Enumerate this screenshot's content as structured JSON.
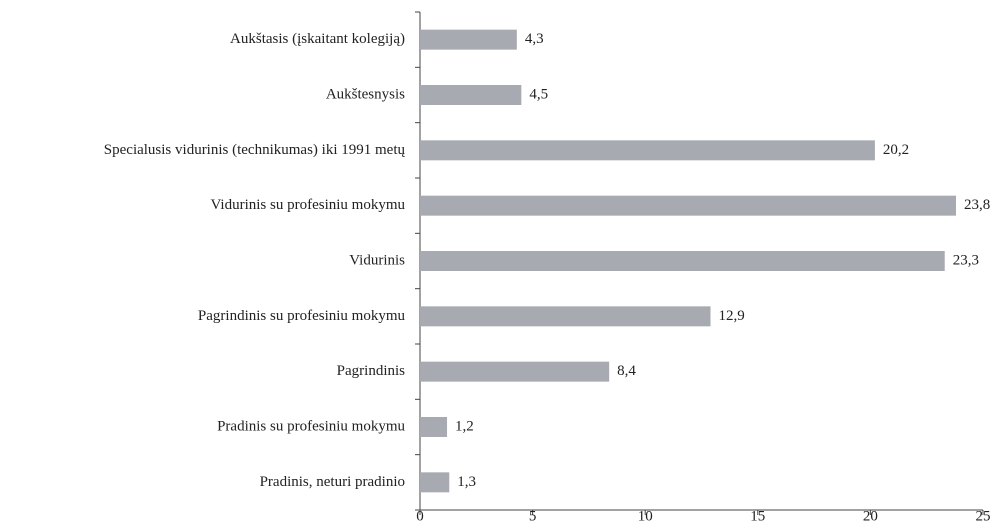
{
  "chart_data": {
    "type": "bar",
    "orientation": "horizontal",
    "categories": [
      "Aukštasis (įskaitant kolegiją)",
      "Aukštesnysis",
      "Specialusis vidurinis (technikumas) iki 1991 metų",
      "Vidurinis su profesiniu mokymu",
      "Vidurinis",
      "Pagrindinis su profesiniu mokymu",
      "Pagrindinis",
      "Pradinis su profesiniu mokymu",
      "Pradinis, neturi pradinio"
    ],
    "values": [
      4.3,
      4.5,
      20.2,
      23.8,
      23.3,
      12.9,
      8.4,
      1.2,
      1.3
    ],
    "value_labels": [
      "4,3",
      "4,5",
      "20,2",
      "23,8",
      "23,3",
      "12,9",
      "8,4",
      "1,2",
      "1,3"
    ],
    "color": "#a7abb1",
    "xlim": [
      0,
      25
    ],
    "xticks": [
      0,
      5,
      10,
      15,
      20,
      25
    ]
  }
}
